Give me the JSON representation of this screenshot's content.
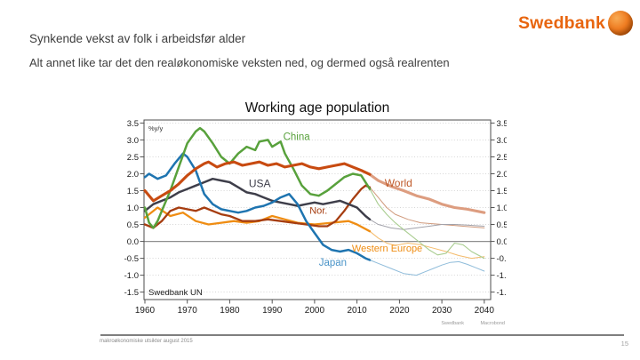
{
  "slide": {
    "title": "Synkende vekst av folk i arbeidsfør alder",
    "subtitle": "Alt annet like tar det den realøkonomiske veksten ned, og dermed også realrenten",
    "footer": "makroøkonomiske utsikter august 2015",
    "page_number": "15",
    "logo": {
      "text": "Swedbank",
      "color": "#e8650f"
    }
  },
  "chart_data": {
    "type": "line",
    "title": "Working age population",
    "unit_label": "%y/y",
    "source_label": "Swedbank UN",
    "credits": [
      "Swedbank",
      "Macrobond"
    ],
    "xlabel": "",
    "ylabel": "%y/y",
    "xlim": [
      1960,
      2040
    ],
    "ylim": [
      -1.5,
      3.5
    ],
    "grid": "dotted-horizontal",
    "legend_position": "inline-labels",
    "yticks": [
      "3.5",
      "3.0",
      "2.5",
      "2.0",
      "1.5",
      "1.0",
      "0.5",
      "0.0",
      "-0.5",
      "-1.0",
      "-1.5"
    ],
    "xticks": [
      "1960",
      "1970",
      "1980",
      "1990",
      "2000",
      "2010",
      "2020",
      "2030",
      "2040"
    ],
    "forecast_note": "thin/light segments after ~2013 are UN projections",
    "series": [
      {
        "id": "western-europe",
        "label": "Western Europe",
        "color": "#ef8d13",
        "forecast_color": "#f4bb6b",
        "label_color": "#ef8d13",
        "width": 2.3,
        "forecast_width": 1.0,
        "label_pos": [
          2008.8,
          -0.3
        ],
        "label_size": 11,
        "history": [
          [
            1960,
            0.7
          ],
          [
            1963,
            1.0
          ],
          [
            1966,
            0.75
          ],
          [
            1969,
            0.85
          ],
          [
            1972,
            0.6
          ],
          [
            1975,
            0.5
          ],
          [
            1978,
            0.55
          ],
          [
            1981,
            0.6
          ],
          [
            1984,
            0.55
          ],
          [
            1987,
            0.6
          ],
          [
            1990,
            0.75
          ],
          [
            1993,
            0.65
          ],
          [
            1996,
            0.55
          ],
          [
            2000,
            0.5
          ],
          [
            2004,
            0.55
          ],
          [
            2008,
            0.6
          ],
          [
            2010,
            0.5
          ],
          [
            2013,
            0.3
          ]
        ],
        "forecast": [
          [
            2015,
            0.1
          ],
          [
            2017,
            -0.05
          ],
          [
            2019,
            -0.12
          ],
          [
            2022,
            -0.05
          ],
          [
            2025,
            -0.1
          ],
          [
            2028,
            -0.2
          ],
          [
            2031,
            -0.3
          ],
          [
            2034,
            -0.42
          ],
          [
            2037,
            -0.5
          ],
          [
            2040,
            -0.45
          ]
        ]
      },
      {
        "id": "nor",
        "label": "Nor.",
        "color": "#a63d10",
        "forecast_color": "#d09a7c",
        "label_color": "#a63d10",
        "width": 2.3,
        "forecast_width": 1.0,
        "label_pos": [
          1998.8,
          0.82
        ],
        "label_size": 11,
        "history": [
          [
            1960,
            0.5
          ],
          [
            1962,
            0.4
          ],
          [
            1964,
            0.6
          ],
          [
            1966,
            0.9
          ],
          [
            1968,
            1.0
          ],
          [
            1970,
            0.95
          ],
          [
            1972,
            0.9
          ],
          [
            1974,
            1.0
          ],
          [
            1976,
            0.9
          ],
          [
            1978,
            0.8
          ],
          [
            1980,
            0.75
          ],
          [
            1983,
            0.6
          ],
          [
            1986,
            0.6
          ],
          [
            1989,
            0.65
          ],
          [
            1992,
            0.6
          ],
          [
            1995,
            0.55
          ],
          [
            1998,
            0.5
          ],
          [
            2001,
            0.45
          ],
          [
            2003,
            0.45
          ],
          [
            2005,
            0.6
          ],
          [
            2007,
            0.9
          ],
          [
            2009,
            1.25
          ],
          [
            2011,
            1.55
          ],
          [
            2012,
            1.65
          ],
          [
            2013,
            1.6
          ]
        ],
        "forecast": [
          [
            2015,
            1.3
          ],
          [
            2017,
            1.0
          ],
          [
            2019,
            0.8
          ],
          [
            2022,
            0.65
          ],
          [
            2025,
            0.55
          ],
          [
            2030,
            0.5
          ],
          [
            2035,
            0.45
          ],
          [
            2040,
            0.4
          ]
        ]
      },
      {
        "id": "usa",
        "label": "USA",
        "color": "#3e3e4a",
        "forecast_color": "#a2a2aa",
        "label_color": "#3e3e4a",
        "width": 2.5,
        "forecast_width": 1.0,
        "label_pos": [
          1984.5,
          1.6
        ],
        "label_size": 12,
        "history": [
          [
            1960,
            0.9
          ],
          [
            1962,
            1.1
          ],
          [
            1964,
            1.2
          ],
          [
            1966,
            1.3
          ],
          [
            1968,
            1.45
          ],
          [
            1970,
            1.55
          ],
          [
            1972,
            1.65
          ],
          [
            1974,
            1.75
          ],
          [
            1976,
            1.85
          ],
          [
            1978,
            1.8
          ],
          [
            1980,
            1.75
          ],
          [
            1982,
            1.6
          ],
          [
            1984,
            1.45
          ],
          [
            1986,
            1.4
          ],
          [
            1988,
            1.3
          ],
          [
            1990,
            1.2
          ],
          [
            1992,
            1.15
          ],
          [
            1994,
            1.1
          ],
          [
            1996,
            1.05
          ],
          [
            1998,
            1.1
          ],
          [
            2000,
            1.15
          ],
          [
            2002,
            1.1
          ],
          [
            2004,
            1.15
          ],
          [
            2006,
            1.2
          ],
          [
            2008,
            1.1
          ],
          [
            2010,
            1.0
          ],
          [
            2012,
            0.75
          ],
          [
            2013,
            0.65
          ]
        ],
        "forecast": [
          [
            2015,
            0.5
          ],
          [
            2018,
            0.4
          ],
          [
            2021,
            0.35
          ],
          [
            2024,
            0.4
          ],
          [
            2027,
            0.45
          ],
          [
            2030,
            0.5
          ],
          [
            2033,
            0.5
          ],
          [
            2036,
            0.48
          ],
          [
            2040,
            0.45
          ]
        ]
      },
      {
        "id": "japan",
        "label": "Japan",
        "color": "#1e74b0",
        "forecast_color": "#8fbcda",
        "label_color": "#4a94c8",
        "width": 2.5,
        "forecast_width": 1.0,
        "label_pos": [
          2001,
          -0.72
        ],
        "label_size": 11.5,
        "history": [
          [
            1960,
            1.9
          ],
          [
            1961,
            2.0
          ],
          [
            1963,
            1.85
          ],
          [
            1965,
            1.95
          ],
          [
            1967,
            2.3
          ],
          [
            1969,
            2.6
          ],
          [
            1970,
            2.5
          ],
          [
            1972,
            2.1
          ],
          [
            1974,
            1.4
          ],
          [
            1976,
            1.1
          ],
          [
            1978,
            0.95
          ],
          [
            1980,
            0.9
          ],
          [
            1982,
            0.85
          ],
          [
            1984,
            0.9
          ],
          [
            1986,
            1.0
          ],
          [
            1988,
            1.05
          ],
          [
            1990,
            1.15
          ],
          [
            1992,
            1.3
          ],
          [
            1994,
            1.4
          ],
          [
            1996,
            1.1
          ],
          [
            1998,
            0.6
          ],
          [
            2000,
            0.25
          ],
          [
            2002,
            -0.1
          ],
          [
            2004,
            -0.25
          ],
          [
            2006,
            -0.3
          ],
          [
            2008,
            -0.25
          ],
          [
            2010,
            -0.35
          ],
          [
            2012,
            -0.5
          ],
          [
            2013,
            -0.55
          ]
        ],
        "forecast": [
          [
            2015,
            -0.65
          ],
          [
            2018,
            -0.8
          ],
          [
            2021,
            -0.95
          ],
          [
            2024,
            -1.0
          ],
          [
            2026,
            -0.9
          ],
          [
            2028,
            -0.8
          ],
          [
            2030,
            -0.7
          ],
          [
            2032,
            -0.62
          ],
          [
            2034,
            -0.6
          ],
          [
            2036,
            -0.68
          ],
          [
            2038,
            -0.78
          ],
          [
            2040,
            -0.88
          ]
        ]
      },
      {
        "id": "china",
        "label": "China",
        "color": "#58a13c",
        "forecast_color": "#a9cd90",
        "label_color": "#58a13c",
        "width": 2.5,
        "forecast_width": 1.1,
        "label_pos": [
          1992.6,
          3.0
        ],
        "label_size": 11.5,
        "history": [
          [
            1960,
            1.0
          ],
          [
            1961,
            0.55
          ],
          [
            1962,
            0.4
          ],
          [
            1963,
            0.6
          ],
          [
            1964,
            0.9
          ],
          [
            1966,
            1.5
          ],
          [
            1968,
            2.2
          ],
          [
            1970,
            2.9
          ],
          [
            1972,
            3.25
          ],
          [
            1973,
            3.35
          ],
          [
            1974,
            3.25
          ],
          [
            1976,
            2.9
          ],
          [
            1978,
            2.5
          ],
          [
            1980,
            2.3
          ],
          [
            1982,
            2.6
          ],
          [
            1984,
            2.8
          ],
          [
            1986,
            2.7
          ],
          [
            1987,
            2.95
          ],
          [
            1989,
            3.0
          ],
          [
            1990,
            2.8
          ],
          [
            1992,
            2.95
          ],
          [
            1993,
            2.6
          ],
          [
            1995,
            2.15
          ],
          [
            1997,
            1.65
          ],
          [
            1999,
            1.4
          ],
          [
            2001,
            1.35
          ],
          [
            2003,
            1.5
          ],
          [
            2005,
            1.7
          ],
          [
            2007,
            1.9
          ],
          [
            2009,
            2.0
          ],
          [
            2011,
            1.95
          ],
          [
            2013,
            1.55
          ]
        ],
        "forecast": [
          [
            2015,
            1.1
          ],
          [
            2017,
            0.8
          ],
          [
            2019,
            0.55
          ],
          [
            2021,
            0.35
          ],
          [
            2023,
            0.15
          ],
          [
            2025,
            -0.05
          ],
          [
            2027,
            -0.25
          ],
          [
            2029,
            -0.4
          ],
          [
            2031,
            -0.35
          ],
          [
            2033,
            -0.05
          ],
          [
            2035,
            -0.1
          ],
          [
            2037,
            -0.3
          ],
          [
            2040,
            -0.5
          ]
        ]
      },
      {
        "id": "world",
        "label": "World",
        "color": "#c84b11",
        "forecast_color": "#dd9d80",
        "label_color": "#c05b2b",
        "width": 3.1,
        "forecast_width": 3.1,
        "label_pos": [
          2016.5,
          1.62
        ],
        "label_size": 12,
        "history": [
          [
            1960,
            1.5
          ],
          [
            1962,
            1.2
          ],
          [
            1964,
            1.35
          ],
          [
            1966,
            1.5
          ],
          [
            1968,
            1.7
          ],
          [
            1970,
            1.95
          ],
          [
            1972,
            2.15
          ],
          [
            1974,
            2.3
          ],
          [
            1975,
            2.35
          ],
          [
            1977,
            2.2
          ],
          [
            1979,
            2.3
          ],
          [
            1981,
            2.35
          ],
          [
            1983,
            2.25
          ],
          [
            1985,
            2.3
          ],
          [
            1987,
            2.35
          ],
          [
            1989,
            2.25
          ],
          [
            1991,
            2.3
          ],
          [
            1993,
            2.2
          ],
          [
            1995,
            2.25
          ],
          [
            1997,
            2.3
          ],
          [
            1999,
            2.2
          ],
          [
            2001,
            2.15
          ],
          [
            2003,
            2.2
          ],
          [
            2005,
            2.25
          ],
          [
            2007,
            2.3
          ],
          [
            2009,
            2.2
          ],
          [
            2011,
            2.1
          ],
          [
            2013,
            1.98
          ]
        ],
        "forecast": [
          [
            2015,
            1.8
          ],
          [
            2018,
            1.63
          ],
          [
            2021,
            1.5
          ],
          [
            2024,
            1.35
          ],
          [
            2027,
            1.25
          ],
          [
            2030,
            1.1
          ],
          [
            2033,
            1.0
          ],
          [
            2036,
            0.95
          ],
          [
            2040,
            0.85
          ]
        ]
      }
    ]
  }
}
